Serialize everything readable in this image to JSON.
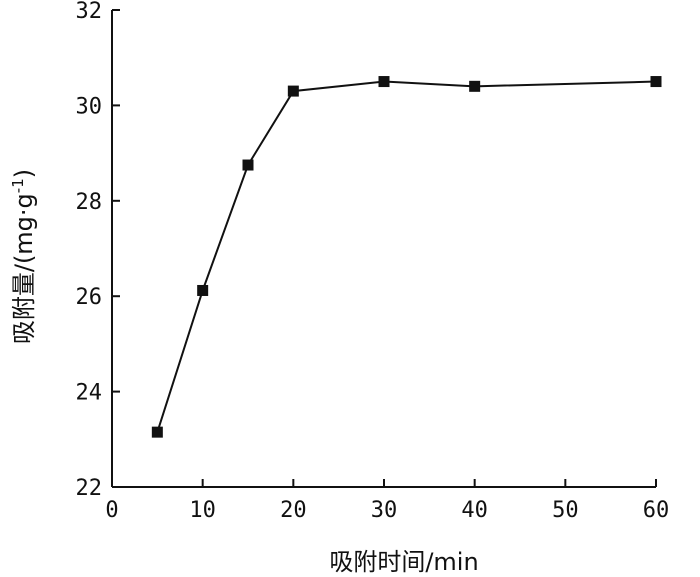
{
  "chart_data": {
    "type": "line",
    "xlabel": "吸附时间/min",
    "ylabel": "吸附量/(mg·g",
    "ylabel_sup": "-1",
    "ylabel_close": ")",
    "xlim": [
      0,
      60
    ],
    "ylim": [
      22,
      32
    ],
    "xticks": [
      0,
      10,
      20,
      30,
      40,
      50,
      60
    ],
    "yticks": [
      22,
      24,
      26,
      28,
      30,
      32
    ],
    "grid": false,
    "marker": "square",
    "line_color": "#111111",
    "series": [
      {
        "x": [
          5,
          10,
          15,
          20,
          30,
          40,
          60
        ],
        "y": [
          23.15,
          26.12,
          28.75,
          30.3,
          30.5,
          30.4,
          30.5
        ]
      }
    ]
  }
}
